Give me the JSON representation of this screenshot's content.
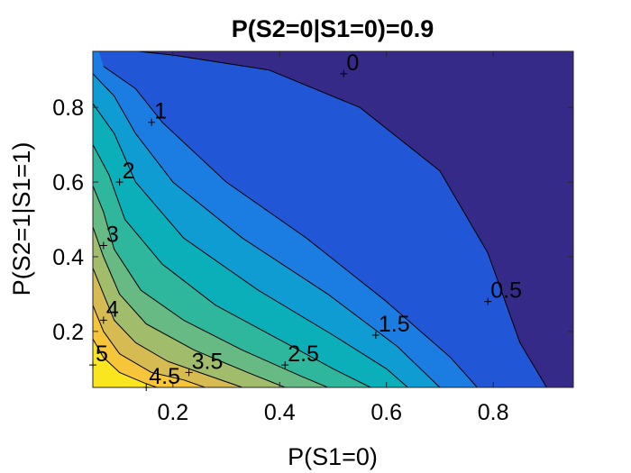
{
  "chart_data": {
    "type": "contour",
    "title": "P(S2=0|S1=0)=0.9",
    "xlabel": "P(S1=0)",
    "ylabel": "P(S2=1|S1=1)",
    "xlim": [
      0.05,
      0.95
    ],
    "ylim": [
      0.05,
      0.95
    ],
    "xticks": [
      0.2,
      0.4,
      0.6,
      0.8
    ],
    "yticks": [
      0.2,
      0.4,
      0.6,
      0.8
    ],
    "xtick_labels": [
      "0.2",
      "0.4",
      "0.6",
      "0.8"
    ],
    "ytick_labels": [
      "0.2",
      "0.4",
      "0.6",
      "0.8"
    ],
    "grid": false,
    "colormap": "parula",
    "levels": [
      0,
      0.5,
      1,
      1.5,
      2,
      2.5,
      3,
      3.5,
      4,
      4.5,
      5
    ],
    "fill_colors": [
      "#352a87",
      "#2157d6",
      "#1b7de2",
      "#0f9cd2",
      "#0aafb9",
      "#2eb79d",
      "#67ba83",
      "#a1bd6b",
      "#d5bb52",
      "#f7c53a",
      "#f9e61e"
    ],
    "contour_lines": [
      {
        "level": 0.5,
        "points": [
          [
            0.07,
            0.96
          ],
          [
            0.2,
            0.94
          ],
          [
            0.38,
            0.9
          ],
          [
            0.55,
            0.8
          ],
          [
            0.7,
            0.63
          ],
          [
            0.79,
            0.41
          ],
          [
            0.85,
            0.17
          ],
          [
            0.9,
            0.05
          ]
        ]
      },
      {
        "level": 1,
        "points": [
          [
            0.07,
            0.91
          ],
          [
            0.13,
            0.85
          ],
          [
            0.18,
            0.76
          ],
          [
            0.3,
            0.6
          ],
          [
            0.45,
            0.45
          ],
          [
            0.6,
            0.28
          ],
          [
            0.72,
            0.13
          ],
          [
            0.77,
            0.05
          ]
        ]
      },
      {
        "level": 1.5,
        "points": [
          [
            0.05,
            0.89
          ],
          [
            0.09,
            0.83
          ],
          [
            0.13,
            0.73
          ],
          [
            0.2,
            0.6
          ],
          [
            0.33,
            0.45
          ],
          [
            0.49,
            0.3
          ],
          [
            0.62,
            0.16
          ],
          [
            0.7,
            0.05
          ]
        ]
      },
      {
        "level": 2,
        "points": [
          [
            0.05,
            0.81
          ],
          [
            0.09,
            0.73
          ],
          [
            0.13,
            0.6
          ],
          [
            0.22,
            0.45
          ],
          [
            0.36,
            0.31
          ],
          [
            0.5,
            0.19
          ],
          [
            0.6,
            0.1
          ],
          [
            0.64,
            0.05
          ]
        ]
      },
      {
        "level": 2.5,
        "points": [
          [
            0.05,
            0.7
          ],
          [
            0.08,
            0.62
          ],
          [
            0.11,
            0.5
          ],
          [
            0.18,
            0.38
          ],
          [
            0.28,
            0.27
          ],
          [
            0.41,
            0.17
          ],
          [
            0.5,
            0.1
          ],
          [
            0.57,
            0.05
          ]
        ]
      },
      {
        "level": 3,
        "points": [
          [
            0.05,
            0.59
          ],
          [
            0.07,
            0.52
          ],
          [
            0.09,
            0.42
          ],
          [
            0.14,
            0.31
          ],
          [
            0.22,
            0.23
          ],
          [
            0.33,
            0.15
          ],
          [
            0.44,
            0.08
          ],
          [
            0.49,
            0.05
          ]
        ]
      },
      {
        "level": 3.5,
        "points": [
          [
            0.05,
            0.48
          ],
          [
            0.07,
            0.4
          ],
          [
            0.1,
            0.3
          ],
          [
            0.15,
            0.22
          ],
          [
            0.24,
            0.15
          ],
          [
            0.34,
            0.09
          ],
          [
            0.41,
            0.05
          ]
        ]
      },
      {
        "level": 4,
        "points": [
          [
            0.05,
            0.37
          ],
          [
            0.07,
            0.3
          ],
          [
            0.09,
            0.23
          ],
          [
            0.13,
            0.17
          ],
          [
            0.19,
            0.12
          ],
          [
            0.27,
            0.08
          ],
          [
            0.33,
            0.05
          ]
        ]
      },
      {
        "level": 4.5,
        "points": [
          [
            0.05,
            0.27
          ],
          [
            0.07,
            0.2
          ],
          [
            0.1,
            0.14
          ],
          [
            0.16,
            0.09
          ],
          [
            0.22,
            0.07
          ],
          [
            0.26,
            0.05
          ]
        ]
      },
      {
        "level": 5,
        "points": [
          [
            0.05,
            0.18
          ],
          [
            0.07,
            0.13
          ],
          [
            0.1,
            0.09
          ],
          [
            0.15,
            0.06
          ],
          [
            0.17,
            0.05
          ]
        ]
      }
    ],
    "annotations": [
      {
        "text": "0",
        "x": 0.52,
        "y": 0.89
      },
      {
        "text": "0.5",
        "x": 0.79,
        "y": 0.28
      },
      {
        "text": "1",
        "x": 0.16,
        "y": 0.76
      },
      {
        "text": "1.5",
        "x": 0.58,
        "y": 0.19
      },
      {
        "text": "2",
        "x": 0.1,
        "y": 0.6
      },
      {
        "text": "2.5",
        "x": 0.41,
        "y": 0.11
      },
      {
        "text": "3",
        "x": 0.07,
        "y": 0.43
      },
      {
        "text": "3.5",
        "x": 0.23,
        "y": 0.09
      },
      {
        "text": "4",
        "x": 0.07,
        "y": 0.23
      },
      {
        "text": "4.5",
        "x": 0.15,
        "y": 0.05
      },
      {
        "text": "5",
        "x": 0.05,
        "y": 0.11
      }
    ]
  }
}
